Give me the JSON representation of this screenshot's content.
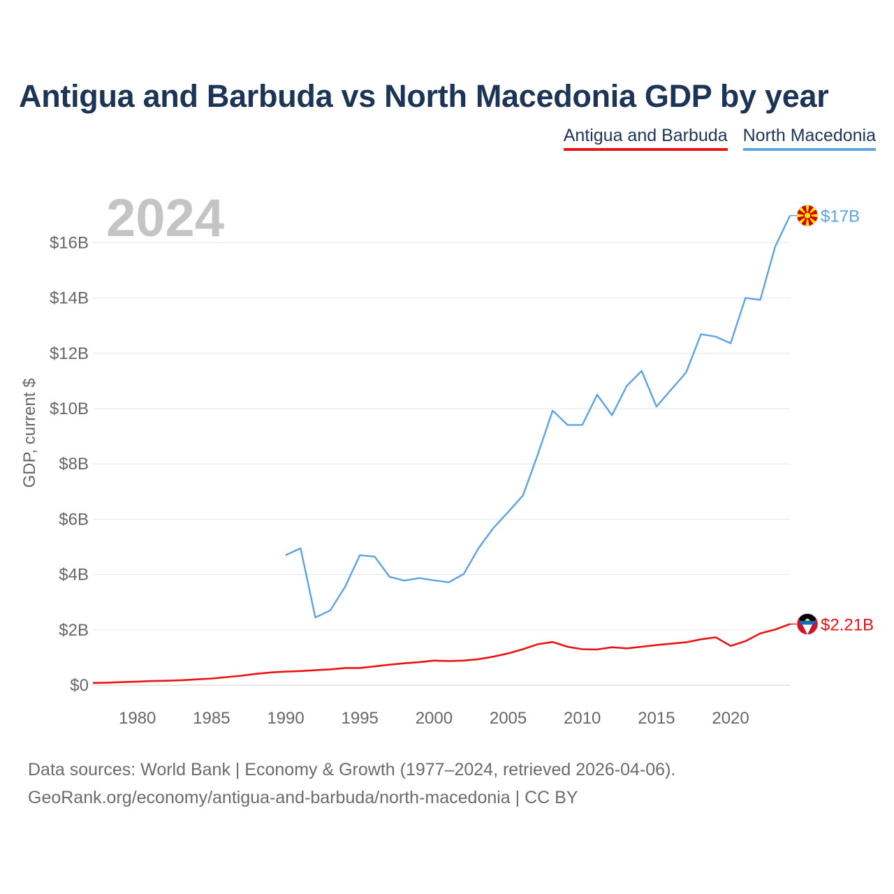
{
  "title": "Antigua and Barbuda vs North Macedonia GDP by year",
  "year_watermark": "2024",
  "colors": {
    "antigua": "#ee1111",
    "macedonia": "#5ba3e3",
    "title": "#1c3557",
    "grid": "#e6e6e6",
    "axis_text": "#666666",
    "watermark": "#c4c4c4"
  },
  "legend": [
    {
      "label": "Antigua and Barbuda",
      "series": "antigua"
    },
    {
      "label": "North Macedonia",
      "series": "macedonia"
    }
  ],
  "footer": {
    "line1": "Data sources: World Bank | Economy & Growth (1977–2024, retrieved 2026-04-06).",
    "line2": "GeoRank.org/economy/antigua-and-barbuda/north-macedonia | CC BY"
  },
  "chart_data": {
    "type": "line",
    "title": "Antigua and Barbuda vs North Macedonia GDP by year",
    "xlabel": "",
    "ylabel": "GDP, current $",
    "xlim": [
      1977,
      2024
    ],
    "ylim": [
      0,
      17.5
    ],
    "x_ticks": [
      1980,
      1985,
      1990,
      1995,
      2000,
      2005,
      2010,
      2015,
      2020
    ],
    "y_ticks": [
      {
        "value": 0,
        "label": "$0"
      },
      {
        "value": 2,
        "label": "$2B"
      },
      {
        "value": 4,
        "label": "$4B"
      },
      {
        "value": 6,
        "label": "$6B"
      },
      {
        "value": 8,
        "label": "$8B"
      },
      {
        "value": 10,
        "label": "$10B"
      },
      {
        "value": 12,
        "label": "$12B"
      },
      {
        "value": 14,
        "label": "$14B"
      },
      {
        "value": 16,
        "label": "$16B"
      }
    ],
    "unit": "billions of current US$",
    "series": [
      {
        "key": "macedonia",
        "name": "North Macedonia",
        "end_label": "$17B",
        "flag_icon": "north-macedonia-flag-icon",
        "x": [
          1990,
          1991,
          1992,
          1993,
          1994,
          1995,
          1996,
          1997,
          1998,
          1999,
          2000,
          2001,
          2002,
          2003,
          2004,
          2005,
          2006,
          2007,
          2008,
          2009,
          2010,
          2011,
          2012,
          2013,
          2014,
          2015,
          2016,
          2017,
          2018,
          2019,
          2020,
          2021,
          2022,
          2023,
          2024
        ],
        "values": [
          4.7,
          4.95,
          2.45,
          2.7,
          3.55,
          4.7,
          4.65,
          3.92,
          3.78,
          3.87,
          3.79,
          3.72,
          4.02,
          4.95,
          5.68,
          6.26,
          6.86,
          8.34,
          9.93,
          9.41,
          9.41,
          10.5,
          9.76,
          10.82,
          11.36,
          10.07,
          10.69,
          11.31,
          12.69,
          12.6,
          12.36,
          14.0,
          13.93,
          15.85,
          16.98
        ]
      },
      {
        "key": "antigua",
        "name": "Antigua and Barbuda",
        "end_label": "$2.21B",
        "flag_icon": "antigua-and-barbuda-flag-icon",
        "x": [
          1977,
          1978,
          1979,
          1980,
          1981,
          1982,
          1983,
          1984,
          1985,
          1986,
          1987,
          1988,
          1989,
          1990,
          1991,
          1992,
          1993,
          1994,
          1995,
          1996,
          1997,
          1998,
          1999,
          2000,
          2001,
          2002,
          2003,
          2004,
          2005,
          2006,
          2007,
          2008,
          2009,
          2010,
          2011,
          2012,
          2013,
          2014,
          2015,
          2016,
          2017,
          2018,
          2019,
          2020,
          2021,
          2022,
          2023,
          2024
        ],
        "values": [
          0.08,
          0.09,
          0.11,
          0.13,
          0.15,
          0.16,
          0.18,
          0.21,
          0.24,
          0.29,
          0.34,
          0.41,
          0.46,
          0.49,
          0.51,
          0.54,
          0.57,
          0.62,
          0.62,
          0.68,
          0.74,
          0.79,
          0.83,
          0.89,
          0.87,
          0.89,
          0.94,
          1.03,
          1.15,
          1.3,
          1.48,
          1.56,
          1.39,
          1.3,
          1.29,
          1.37,
          1.33,
          1.39,
          1.45,
          1.5,
          1.55,
          1.66,
          1.73,
          1.42,
          1.59,
          1.87,
          2.01,
          2.21
        ]
      }
    ]
  }
}
